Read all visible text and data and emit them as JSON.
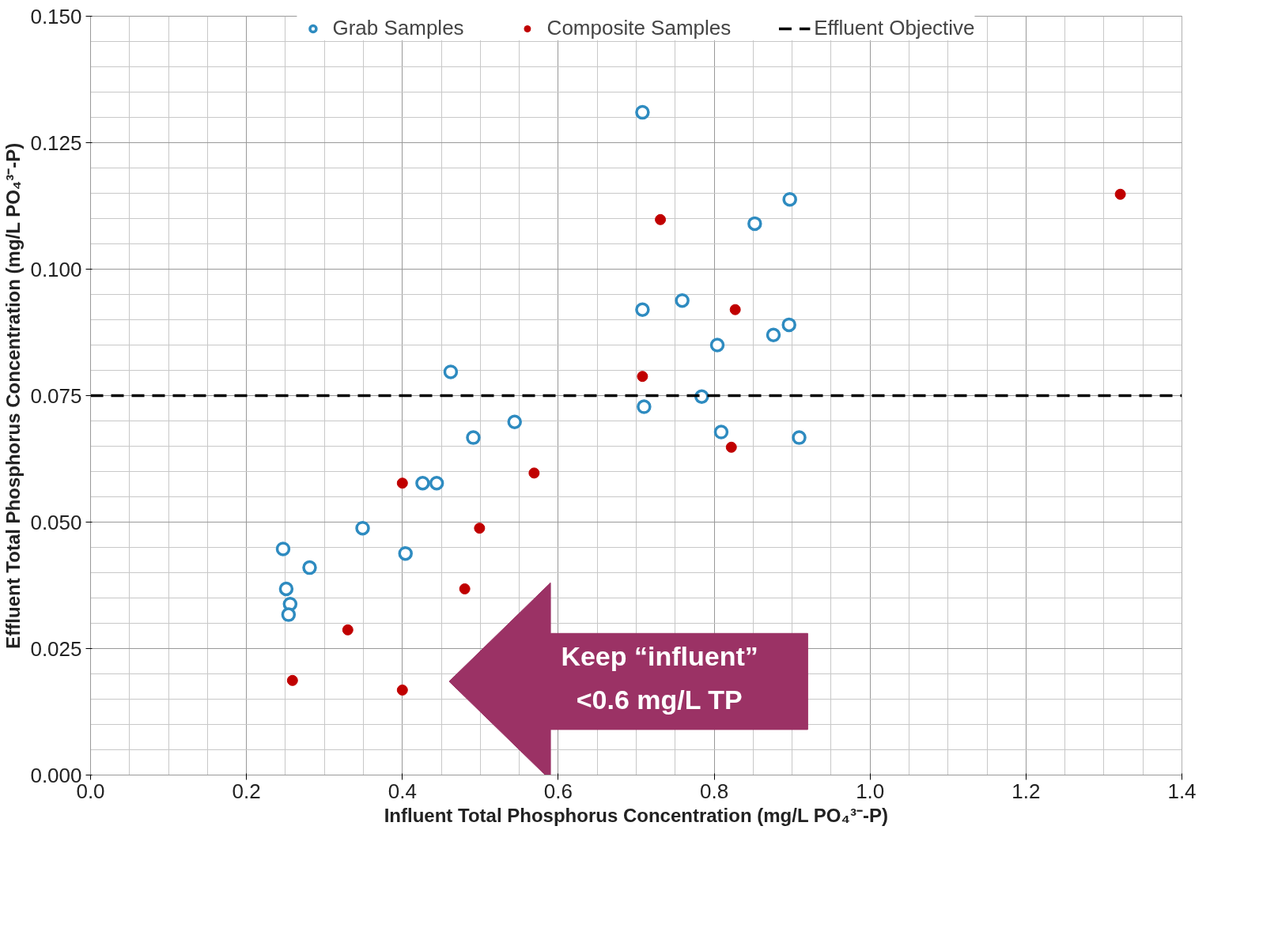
{
  "chart_data": {
    "type": "scatter",
    "xlabel": "Influent Total Phosphorus Concentration (mg/L PO₄³⁻-P)",
    "ylabel": "Effluent Total Phosphorus Concentration (mg/L PO₄³⁻-P)",
    "xlim": [
      0,
      1.4
    ],
    "xticks": [
      {
        "value": 0,
        "label": "0.0"
      },
      {
        "value": 0.2,
        "label": "0.2"
      },
      {
        "value": 0.4,
        "label": "0.4"
      },
      {
        "value": 0.6,
        "label": "0.6"
      },
      {
        "value": 0.8,
        "label": "0.8"
      },
      {
        "value": 1,
        "label": "1.0"
      },
      {
        "value": 1.2,
        "label": "1.2"
      },
      {
        "value": 1.4,
        "label": "1.4"
      }
    ],
    "ylim": [
      0,
      0.15
    ],
    "yticks": [
      {
        "value": 0,
        "label": "0.000"
      },
      {
        "value": 0.025,
        "label": "0.025"
      },
      {
        "value": 0.05,
        "label": "0.050"
      },
      {
        "value": 0.075,
        "label": "0.075"
      },
      {
        "value": 0.1,
        "label": "0.100"
      },
      {
        "value": 0.125,
        "label": "0.125"
      },
      {
        "value": 0.15,
        "label": "0.150"
      }
    ],
    "grid": true,
    "legend": "top",
    "series": [
      {
        "name": "Grab Samples",
        "color": "#2e8bc0",
        "marker": "circle",
        "x": [
          0.708,
          0.897,
          0.852,
          0.759,
          0.708,
          0.896,
          0.876,
          0.804,
          0.462,
          0.784,
          0.71,
          0.809,
          0.909,
          0.544,
          0.491,
          0.426,
          0.444,
          0.349,
          0.404,
          0.247,
          0.281,
          0.251,
          0.256,
          0.254
        ],
        "values": [
          0.131,
          0.1138,
          0.109,
          0.0938,
          0.092,
          0.089,
          0.087,
          0.085,
          0.0797,
          0.0748,
          0.0728,
          0.0678,
          0.0667,
          0.0698,
          0.0667,
          0.0577,
          0.0577,
          0.0488,
          0.0438,
          0.0447,
          0.041,
          0.0368,
          0.0338,
          0.0317
        ]
      },
      {
        "name": "Composite Samples",
        "color": "#c00000",
        "marker": "dot",
        "x": [
          1.321,
          0.731,
          0.827,
          0.708,
          0.822,
          0.569,
          0.4,
          0.499,
          0.48,
          0.33,
          0.259,
          0.4
        ],
        "values": [
          0.1148,
          0.1098,
          0.092,
          0.0788,
          0.0648,
          0.0597,
          0.0577,
          0.0488,
          0.0368,
          0.0287,
          0.0187,
          0.0168
        ]
      }
    ],
    "ref_lines": [
      {
        "axis": "y",
        "value": 0.075,
        "label": "Effluent Objective",
        "color": "#000000",
        "line_style": "dashed"
      }
    ],
    "annotations": [
      "Keep “influent” <0.6 mg/L TP"
    ]
  }
}
